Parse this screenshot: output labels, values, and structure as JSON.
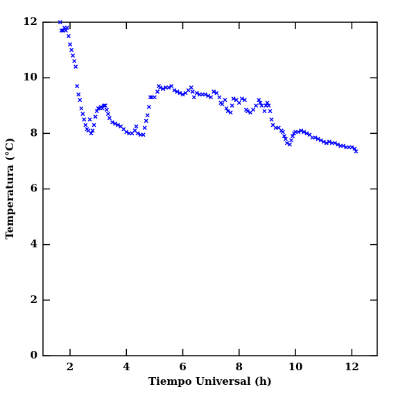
{
  "chart_data": {
    "type": "scatter",
    "xlabel": "Tiempo Universal (h)",
    "ylabel": "Temperatura (°C)",
    "xlim": [
      1.04,
      12.9
    ],
    "ylim": [
      0,
      12
    ],
    "xticks": [
      2,
      4,
      6,
      8,
      10,
      12
    ],
    "yticks": [
      0,
      2,
      4,
      6,
      8,
      10,
      12
    ],
    "series": [
      {
        "color": "#0000ff",
        "x": [
          1.65,
          1.7,
          1.75,
          1.8,
          1.85,
          1.9,
          1.95,
          2.0,
          2.05,
          2.1,
          2.15,
          2.2,
          2.25,
          2.3,
          2.35,
          2.4,
          2.45,
          2.5,
          2.55,
          2.6,
          2.65,
          2.7,
          2.75,
          2.8,
          2.85,
          2.9,
          2.95,
          3.0,
          3.05,
          3.1,
          3.15,
          3.2,
          3.25,
          3.3,
          3.35,
          3.4,
          3.5,
          3.6,
          3.7,
          3.8,
          3.9,
          4.0,
          4.1,
          4.2,
          4.3,
          4.35,
          4.4,
          4.5,
          4.6,
          4.65,
          4.7,
          4.75,
          4.8,
          4.85,
          4.9,
          5.0,
          5.1,
          5.15,
          5.2,
          5.3,
          5.4,
          5.5,
          5.6,
          5.7,
          5.8,
          5.9,
          6.0,
          6.1,
          6.2,
          6.3,
          6.35,
          6.4,
          6.5,
          6.6,
          6.7,
          6.8,
          6.9,
          7.0,
          7.1,
          7.2,
          7.3,
          7.35,
          7.4,
          7.5,
          7.55,
          7.6,
          7.7,
          7.75,
          7.8,
          7.9,
          8.0,
          8.1,
          8.2,
          8.25,
          8.3,
          8.4,
          8.5,
          8.6,
          8.7,
          8.75,
          8.8,
          8.9,
          8.95,
          9.0,
          9.05,
          9.1,
          9.15,
          9.2,
          9.3,
          9.4,
          9.5,
          9.55,
          9.6,
          9.65,
          9.7,
          9.8,
          9.85,
          9.9,
          9.95,
          10.0,
          10.1,
          10.2,
          10.3,
          10.4,
          10.5,
          10.6,
          10.7,
          10.8,
          10.9,
          11.0,
          11.1,
          11.2,
          11.3,
          11.4,
          11.5,
          11.6,
          11.7,
          11.8,
          11.9,
          12.0,
          12.1,
          12.15
        ],
        "values": [
          12,
          11.7,
          11.7,
          11.8,
          11.7,
          11.8,
          11.5,
          11.2,
          11.0,
          10.8,
          10.6,
          10.4,
          9.7,
          9.4,
          9.2,
          8.9,
          8.7,
          8.5,
          8.3,
          8.15,
          8.1,
          8.5,
          8.0,
          8.1,
          8.3,
          8.6,
          8.8,
          8.9,
          8.9,
          8.95,
          8.9,
          9.0,
          9.0,
          8.85,
          8.7,
          8.55,
          8.4,
          8.35,
          8.3,
          8.25,
          8.15,
          8.05,
          8.0,
          8.0,
          8.1,
          8.25,
          8.0,
          7.95,
          7.95,
          8.2,
          8.45,
          8.65,
          8.95,
          9.3,
          9.3,
          9.3,
          9.5,
          9.7,
          9.65,
          9.6,
          9.65,
          9.65,
          9.7,
          9.55,
          9.5,
          9.45,
          9.4,
          9.45,
          9.55,
          9.65,
          9.5,
          9.3,
          9.45,
          9.4,
          9.4,
          9.4,
          9.35,
          9.3,
          9.5,
          9.45,
          9.3,
          9.1,
          9.05,
          9.2,
          8.9,
          8.8,
          8.75,
          9.0,
          9.25,
          9.2,
          9.1,
          9.25,
          9.2,
          8.85,
          8.8,
          8.75,
          8.85,
          9.0,
          9.2,
          9.1,
          9.0,
          8.8,
          9.0,
          9.1,
          9.0,
          8.8,
          8.5,
          8.3,
          8.2,
          8.2,
          8.1,
          8.05,
          7.9,
          7.8,
          7.65,
          7.6,
          7.75,
          7.9,
          8.0,
          8.05,
          8.05,
          8.1,
          8.05,
          8.0,
          7.95,
          7.85,
          7.85,
          7.8,
          7.75,
          7.7,
          7.65,
          7.7,
          7.65,
          7.65,
          7.6,
          7.55,
          7.55,
          7.5,
          7.5,
          7.5,
          7.45,
          7.35
        ]
      }
    ]
  }
}
